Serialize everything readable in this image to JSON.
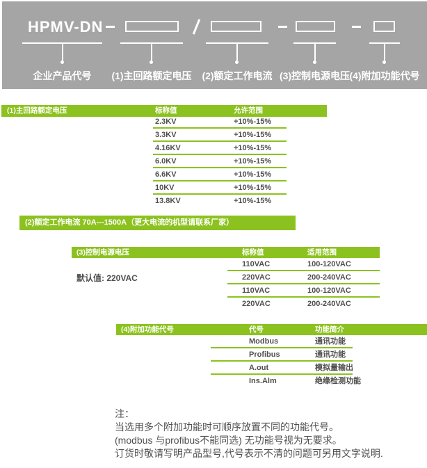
{
  "banner": {
    "product_code": "HPMV-DN",
    "groups": [
      {
        "label": "企业产品代号"
      },
      {
        "label": "(1)主回路额定电压"
      },
      {
        "label": "(2)额定工作电流"
      },
      {
        "label": "(3)控制电源电压"
      },
      {
        "label": "(4)附加功能代号"
      }
    ]
  },
  "table1": {
    "title": "(1)主回路额定电压",
    "col1": "标称值",
    "col2": "允许范围",
    "rows": [
      [
        "2.3KV",
        "+10%-15%"
      ],
      [
        "3.3KV",
        "+10%-15%"
      ],
      [
        "4.16KV",
        "+10%-15%"
      ],
      [
        "6.0KV",
        "+10%-15%"
      ],
      [
        "6.6KV",
        "+10%-15%"
      ],
      [
        "10KV",
        "+10%-15%"
      ],
      [
        "13.8KV",
        "+10%-15%"
      ]
    ]
  },
  "banner2": {
    "text": "(2)额定工作电流 70A---1500A（更大电流的机型请联系厂家）"
  },
  "table3": {
    "title": "(3)控制电源电压",
    "default_note": "默认值: 220VAC",
    "col1": "标称值",
    "col2": "适用范围",
    "rows": [
      [
        "110VAC",
        "100-120VAC"
      ],
      [
        "220VAC",
        "200-240VAC"
      ],
      [
        "110VAC",
        "100-120VAC"
      ],
      [
        "220VAC",
        "200-240VAC"
      ]
    ]
  },
  "table4": {
    "title": "(4)附加功能代号",
    "col1": "代号",
    "col2": "功能简介",
    "rows": [
      [
        "Modbus",
        "通讯功能"
      ],
      [
        "Profibus",
        "通讯功能"
      ],
      [
        "A.out",
        "模拟量输出"
      ],
      [
        "Ins.Alm",
        "绝缘检测功能"
      ]
    ]
  },
  "notes": {
    "heading": "注：",
    "lines": [
      "当选用多个附加功能时可顺序放置不同的功能代号。",
      "(modbus 与profibus不能同选) 无功能号视为无要求。",
      "订货时敬请写明产品型号,代号表示不清的问题可另用文字说明."
    ]
  },
  "colors": {
    "green": "#8cc21f",
    "banner_gray": "#a5a5a5",
    "text_dark": "#4f4f4f",
    "white": "#ffffff"
  }
}
